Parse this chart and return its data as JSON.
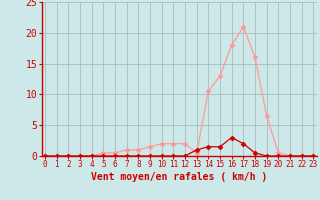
{
  "title": "",
  "xlabel": "Vent moyen/en rafales ( km/h )",
  "ylabel": "",
  "bg_color": "#cde8e8",
  "grid_color": "#aabcbc",
  "line1_color": "#ff9999",
  "line2_color": "#cc0000",
  "line1_x": [
    0,
    1,
    2,
    3,
    4,
    5,
    6,
    7,
    8,
    9,
    10,
    11,
    12,
    13,
    14,
    15,
    16,
    17,
    18,
    19,
    20,
    21,
    22,
    23
  ],
  "line1_y": [
    0,
    0,
    0,
    0,
    0,
    0.5,
    0.5,
    1,
    1,
    1.5,
    2,
    2,
    2,
    0.5,
    10.5,
    13,
    18,
    21,
    16,
    6.5,
    0.5,
    0,
    0,
    0
  ],
  "line2_x": [
    0,
    1,
    2,
    3,
    4,
    5,
    6,
    7,
    8,
    9,
    10,
    11,
    12,
    13,
    14,
    15,
    16,
    17,
    18,
    19,
    20,
    21,
    22,
    23
  ],
  "line2_y": [
    0,
    0,
    0,
    0,
    0,
    0,
    0,
    0,
    0,
    0,
    0,
    0,
    0,
    1,
    1.5,
    1.5,
    3,
    2,
    0.5,
    0,
    0,
    0,
    0,
    0
  ],
  "xlim": [
    -0.3,
    23.3
  ],
  "ylim": [
    0,
    25
  ],
  "xticks": [
    0,
    1,
    2,
    3,
    4,
    5,
    6,
    7,
    8,
    9,
    10,
    11,
    12,
    13,
    14,
    15,
    16,
    17,
    18,
    19,
    20,
    21,
    22,
    23
  ],
  "yticks": [
    0,
    5,
    10,
    15,
    20,
    25
  ],
  "marker": "D",
  "markersize": 2.5,
  "tick_color": "#cc0000",
  "xlabel_fontsize": 7,
  "ytick_fontsize": 7,
  "xtick_fontsize": 5.5
}
